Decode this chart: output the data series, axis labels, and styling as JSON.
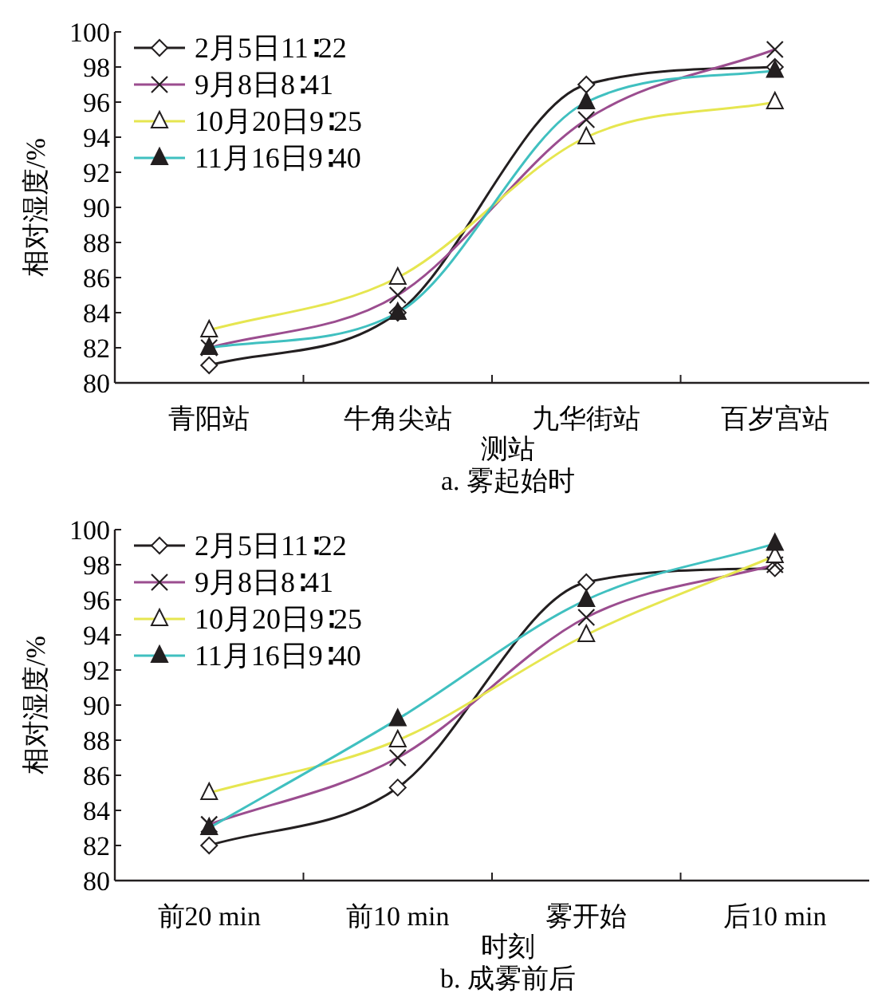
{
  "chart_data": [
    {
      "type": "line",
      "title": "a. 雾起始时",
      "xlabel": "测站",
      "ylabel": "相对湿度/%",
      "categories": [
        "青阳站",
        "牛角尖站",
        "九华街站",
        "百岁宫站"
      ],
      "ylim": [
        80,
        100
      ],
      "yticks": [
        80,
        82,
        84,
        86,
        88,
        90,
        92,
        94,
        96,
        98,
        100
      ],
      "legend": "top left",
      "series": [
        {
          "name": "2月5日11∶22",
          "color": "#231f20",
          "marker": "diamond",
          "values": [
            81,
            84,
            97,
            98
          ]
        },
        {
          "name": "9月8日8∶41",
          "color": "#9b4d8f",
          "marker": "cross",
          "values": [
            82,
            85,
            95,
            99
          ]
        },
        {
          "name": "10月20日9∶25",
          "color": "#e6e650",
          "marker": "triangle",
          "values": [
            83,
            86,
            94,
            96
          ]
        },
        {
          "name": "11月16日9∶40",
          "color": "#40c0c0",
          "marker": "triangle",
          "values": [
            82,
            84,
            96,
            97.8
          ]
        }
      ]
    },
    {
      "type": "line",
      "title": "b. 成雾前后",
      "xlabel": "时刻",
      "ylabel": "相对湿度/%",
      "categories": [
        "前20 min",
        "前10 min",
        "雾开始",
        "后10 min"
      ],
      "ylim": [
        80,
        100
      ],
      "yticks": [
        80,
        82,
        84,
        86,
        88,
        90,
        92,
        94,
        96,
        98,
        100
      ],
      "legend": "top left",
      "series": [
        {
          "name": "2月5日11∶22",
          "color": "#231f20",
          "marker": "diamond",
          "values": [
            82,
            85.3,
            97,
            97.8
          ]
        },
        {
          "name": "9月8日8∶41",
          "color": "#9b4d8f",
          "marker": "cross",
          "values": [
            83.2,
            87,
            95,
            98
          ]
        },
        {
          "name": "10月20日9∶25",
          "color": "#e6e650",
          "marker": "triangle",
          "values": [
            85,
            88,
            94,
            98.5
          ]
        },
        {
          "name": "11月16日9∶40",
          "color": "#40c0c0",
          "marker": "triangle",
          "values": [
            83,
            89.2,
            96,
            99.2
          ]
        }
      ]
    }
  ]
}
